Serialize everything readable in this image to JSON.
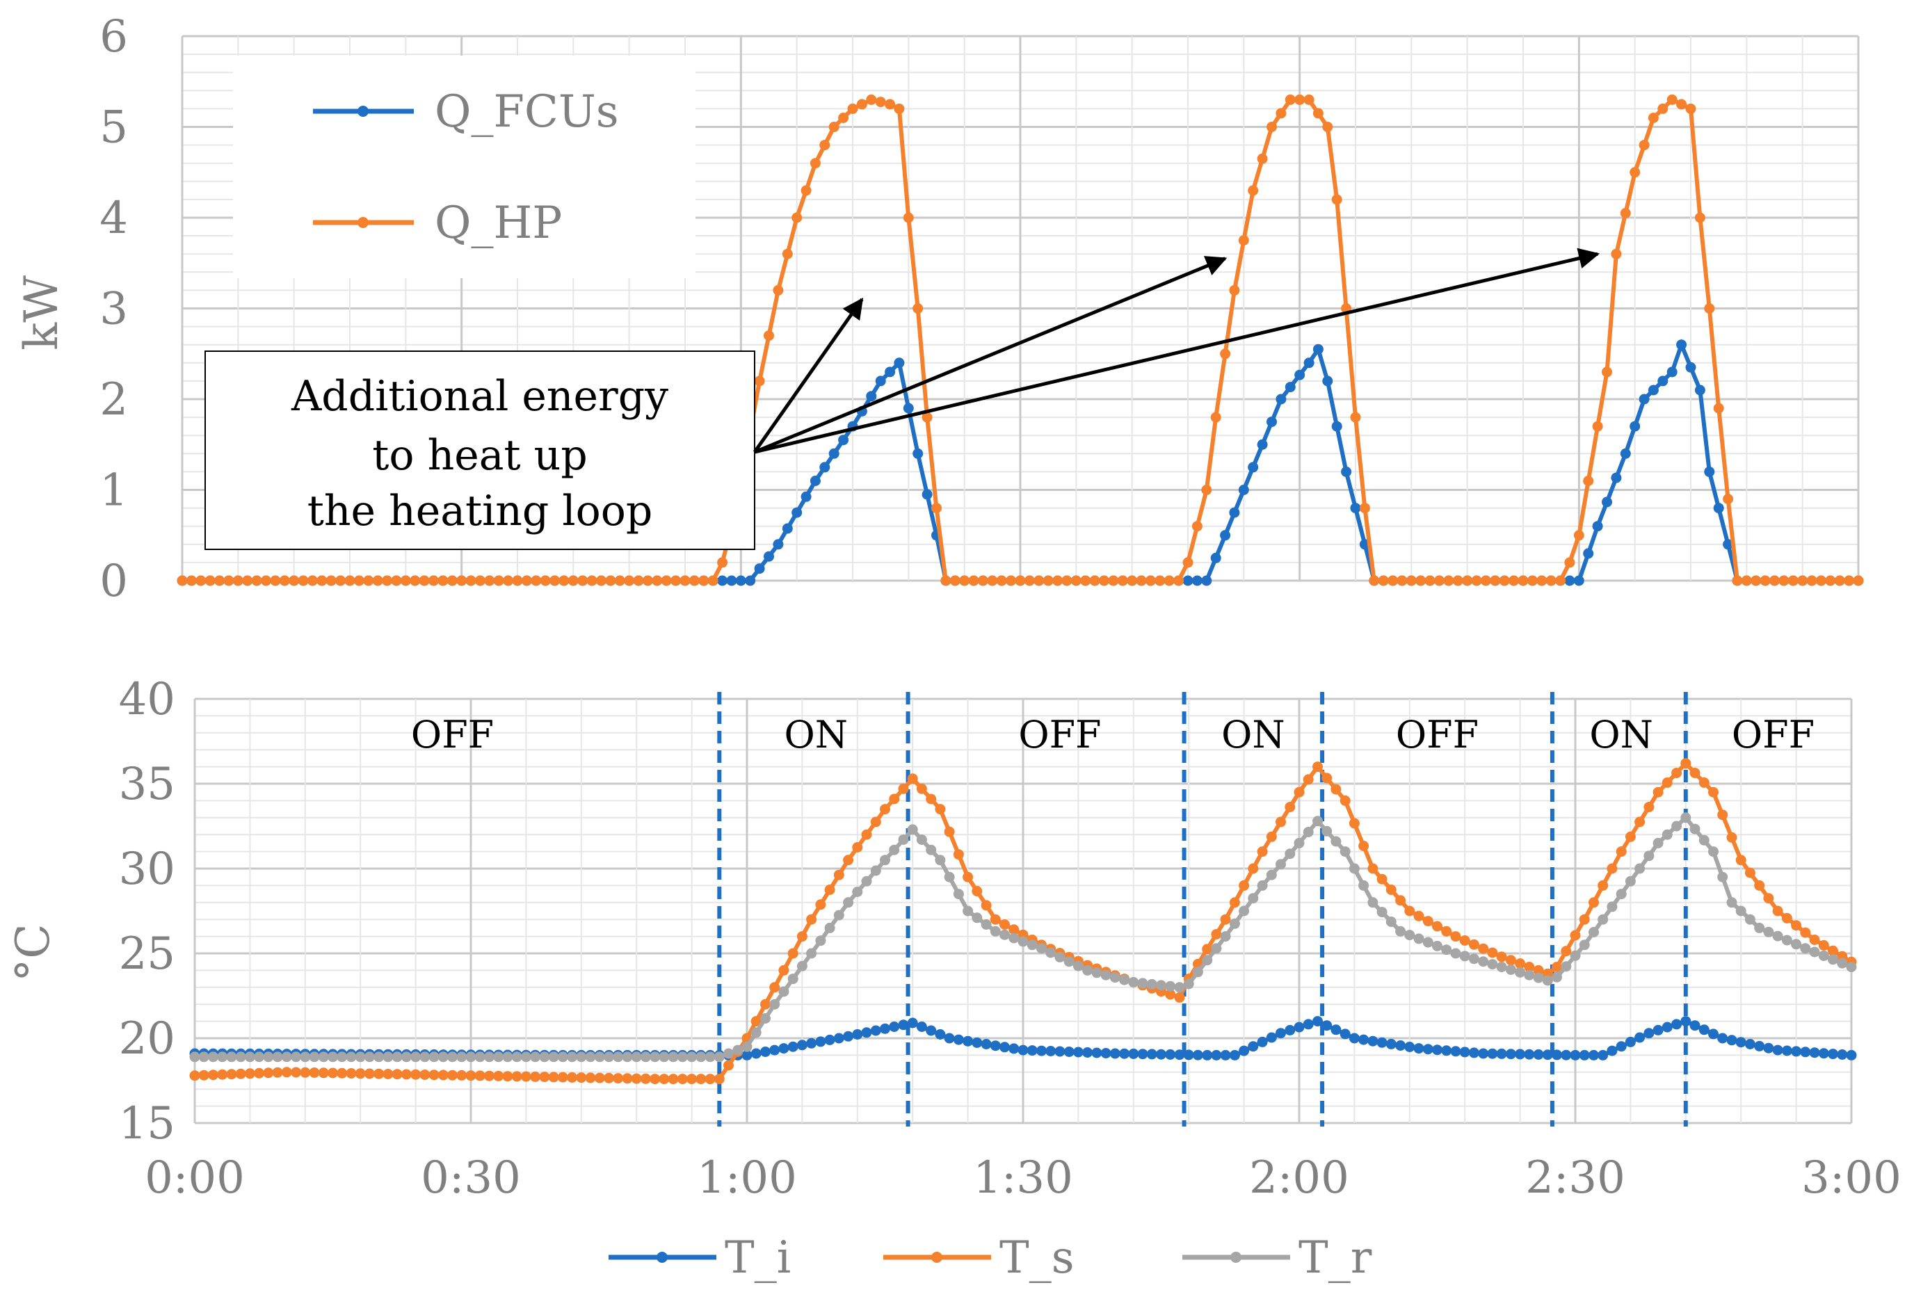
{
  "colors": {
    "fcu": "#1f6fc4",
    "hp": "#f6812c",
    "ts": "#f6812c",
    "tr": "#a6a6a6",
    "ti": "#1f6fc4",
    "axis_text": "#808080",
    "grid_major": "#c8c8c8",
    "grid_minor": "#e6e6e6",
    "annotation": "#000000"
  },
  "chart_data": [
    {
      "type": "line",
      "name": "power",
      "ylabel": "kW",
      "ylim": [
        0,
        6
      ],
      "yticks": [
        "0",
        "1",
        "2",
        "3",
        "4",
        "5",
        "6"
      ],
      "x_unit": "minutes",
      "xlim": [
        0,
        180
      ],
      "legend": {
        "position": "top-left",
        "entries": [
          "Q_FCUs",
          "Q_HP"
        ]
      },
      "annotation": {
        "lines": [
          "Additional energy",
          "to heat up",
          "the heating loop"
        ],
        "arrow_targets": [
          [
            73,
            3.1
          ],
          [
            112,
            3.55
          ],
          [
            152,
            3.6
          ]
        ]
      },
      "series": [
        {
          "name": "Q_FCUs",
          "color_key": "fcu",
          "points": [
            [
              0,
              0
            ],
            [
              57,
              0
            ],
            [
              61,
              0
            ],
            [
              64,
              0.4
            ],
            [
              68,
              1.1
            ],
            [
              72,
              1.7
            ],
            [
              75,
              2.2
            ],
            [
              77,
              2.4
            ],
            [
              79,
              1.4
            ],
            [
              81,
              0.5
            ],
            [
              82,
              0
            ],
            [
              108,
              0
            ],
            [
              110,
              0
            ],
            [
              112,
              0.5
            ],
            [
              116,
              1.5
            ],
            [
              118,
              2.0
            ],
            [
              121,
              2.4
            ],
            [
              122,
              2.55
            ],
            [
              123,
              2.2
            ],
            [
              125,
              1.2
            ],
            [
              127,
              0.4
            ],
            [
              128,
              0
            ],
            [
              149,
              0
            ],
            [
              150,
              0
            ],
            [
              152,
              0.6
            ],
            [
              155,
              1.4
            ],
            [
              157,
              2.0
            ],
            [
              160,
              2.3
            ],
            [
              161,
              2.6
            ],
            [
              163,
              2.1
            ],
            [
              164,
              1.2
            ],
            [
              166,
              0.4
            ],
            [
              167,
              0
            ],
            [
              180,
              0
            ]
          ]
        },
        {
          "name": "Q_HP",
          "color_key": "hp",
          "points": [
            [
              0,
              0
            ],
            [
              57,
              0
            ],
            [
              58,
              0.2
            ],
            [
              59,
              0.6
            ],
            [
              60,
              1.1
            ],
            [
              62,
              2.2
            ],
            [
              64,
              3.2
            ],
            [
              66,
              4.0
            ],
            [
              68,
              4.6
            ],
            [
              70,
              5.0
            ],
            [
              72,
              5.2
            ],
            [
              74,
              5.3
            ],
            [
              76,
              5.25
            ],
            [
              77,
              5.2
            ],
            [
              78,
              4.0
            ],
            [
              79,
              3.0
            ],
            [
              80,
              1.8
            ],
            [
              81,
              0.8
            ],
            [
              82,
              0
            ],
            [
              107,
              0
            ],
            [
              108,
              0.2
            ],
            [
              110,
              1.0
            ],
            [
              111,
              1.8
            ],
            [
              113,
              3.2
            ],
            [
              115,
              4.3
            ],
            [
              117,
              5.0
            ],
            [
              119,
              5.3
            ],
            [
              121,
              5.3
            ],
            [
              123,
              5.0
            ],
            [
              124,
              4.2
            ],
            [
              125,
              3.0
            ],
            [
              126,
              1.8
            ],
            [
              127,
              0.8
            ],
            [
              128,
              0
            ],
            [
              148,
              0
            ],
            [
              149,
              0.2
            ],
            [
              150,
              0.5
            ],
            [
              151,
              1.1
            ],
            [
              153,
              2.3
            ],
            [
              154,
              3.6
            ],
            [
              156,
              4.5
            ],
            [
              158,
              5.1
            ],
            [
              160,
              5.3
            ],
            [
              162,
              5.2
            ],
            [
              163,
              4.0
            ],
            [
              164,
              3.0
            ],
            [
              165,
              1.9
            ],
            [
              166,
              0.9
            ],
            [
              167,
              0
            ],
            [
              180,
              0
            ]
          ]
        }
      ]
    },
    {
      "type": "line",
      "name": "temperature",
      "ylabel": "°C",
      "ylim": [
        15,
        40
      ],
      "yticks": [
        "15",
        "20",
        "25",
        "30",
        "35",
        "40"
      ],
      "x_unit": "minutes",
      "xlim": [
        0,
        180
      ],
      "xticks": [
        "0:00",
        "0:30",
        "1:00",
        "1:30",
        "2:00",
        "2:30",
        "3:00"
      ],
      "legend": {
        "position": "bottom",
        "entries": [
          "T_i",
          "T_s",
          "T_r"
        ]
      },
      "state_boundaries": [
        57,
        77.5,
        107.5,
        122.5,
        147.5,
        162
      ],
      "states": [
        {
          "label": "OFF",
          "x": 28
        },
        {
          "label": "ON",
          "x": 67.5
        },
        {
          "label": "OFF",
          "x": 94
        },
        {
          "label": "ON",
          "x": 115
        },
        {
          "label": "OFF",
          "x": 135
        },
        {
          "label": "ON",
          "x": 155
        },
        {
          "label": "OFF",
          "x": 171.5
        }
      ],
      "series": [
        {
          "name": "T_i",
          "color_key": "ti",
          "points": [
            [
              0,
              19.1
            ],
            [
              20,
              19.05
            ],
            [
              40,
              19.0
            ],
            [
              57,
              19.0
            ],
            [
              60,
              19.0
            ],
            [
              70,
              20.0
            ],
            [
              78,
              20.9
            ],
            [
              82,
              20.0
            ],
            [
              90,
              19.3
            ],
            [
              100,
              19.1
            ],
            [
              110,
              19.0
            ],
            [
              113,
              19.0
            ],
            [
              118,
              20.3
            ],
            [
              122,
              21.0
            ],
            [
              126,
              20.0
            ],
            [
              133,
              19.4
            ],
            [
              140,
              19.1
            ],
            [
              150,
              19.0
            ],
            [
              153,
              19.0
            ],
            [
              158,
              20.3
            ],
            [
              162,
              21.0
            ],
            [
              166,
              20.0
            ],
            [
              172,
              19.3
            ],
            [
              180,
              19.0
            ]
          ]
        },
        {
          "name": "T_s",
          "color_key": "ts",
          "points": [
            [
              0,
              17.8
            ],
            [
              10,
              18.0
            ],
            [
              30,
              17.8
            ],
            [
              50,
              17.6
            ],
            [
              57,
              17.6
            ],
            [
              60,
              20.0
            ],
            [
              63,
              23.0
            ],
            [
              67,
              27.0
            ],
            [
              71,
              30.5
            ],
            [
              75,
              33.5
            ],
            [
              78,
              35.3
            ],
            [
              81,
              33.5
            ],
            [
              84,
              29.5
            ],
            [
              87,
              27.0
            ],
            [
              92,
              25.5
            ],
            [
              97,
              24.3
            ],
            [
              102,
              23.3
            ],
            [
              107,
              22.4
            ],
            [
              108,
              23.5
            ],
            [
              112,
              27.0
            ],
            [
              116,
              31.0
            ],
            [
              120,
              34.5
            ],
            [
              122,
              36.0
            ],
            [
              125,
              34.0
            ],
            [
              128,
              30.0
            ],
            [
              132,
              27.5
            ],
            [
              137,
              26.0
            ],
            [
              142,
              24.8
            ],
            [
              147,
              23.8
            ],
            [
              148,
              24.2
            ],
            [
              151,
              27.0
            ],
            [
              155,
              31.0
            ],
            [
              159,
              34.5
            ],
            [
              162,
              36.2
            ],
            [
              165,
              34.5
            ],
            [
              168,
              30.5
            ],
            [
              172,
              27.5
            ],
            [
              176,
              25.8
            ],
            [
              180,
              24.5
            ]
          ]
        },
        {
          "name": "T_r",
          "color_key": "tr",
          "points": [
            [
              0,
              18.9
            ],
            [
              15,
              18.9
            ],
            [
              30,
              18.9
            ],
            [
              50,
              18.9
            ],
            [
              57,
              18.9
            ],
            [
              60,
              19.5
            ],
            [
              63,
              22.0
            ],
            [
              67,
              25.0
            ],
            [
              71,
              28.0
            ],
            [
              75,
              30.5
            ],
            [
              78,
              32.3
            ],
            [
              81,
              30.5
            ],
            [
              84,
              27.5
            ],
            [
              87,
              26.3
            ],
            [
              92,
              25.3
            ],
            [
              97,
              24.0
            ],
            [
              102,
              23.3
            ],
            [
              107,
              23.0
            ],
            [
              108,
              23.2
            ],
            [
              112,
              26.0
            ],
            [
              116,
              29.0
            ],
            [
              120,
              31.5
            ],
            [
              122,
              32.8
            ],
            [
              125,
              31.0
            ],
            [
              128,
              28.0
            ],
            [
              131,
              26.3
            ],
            [
              137,
              25.0
            ],
            [
              142,
              24.2
            ],
            [
              147,
              23.4
            ],
            [
              148,
              23.6
            ],
            [
              151,
              25.5
            ],
            [
              155,
              28.5
            ],
            [
              159,
              31.5
            ],
            [
              162,
              33.0
            ],
            [
              165,
              31.0
            ],
            [
              167,
              28.0
            ],
            [
              170,
              26.5
            ],
            [
              175,
              25.3
            ],
            [
              180,
              24.2
            ]
          ]
        }
      ]
    }
  ]
}
